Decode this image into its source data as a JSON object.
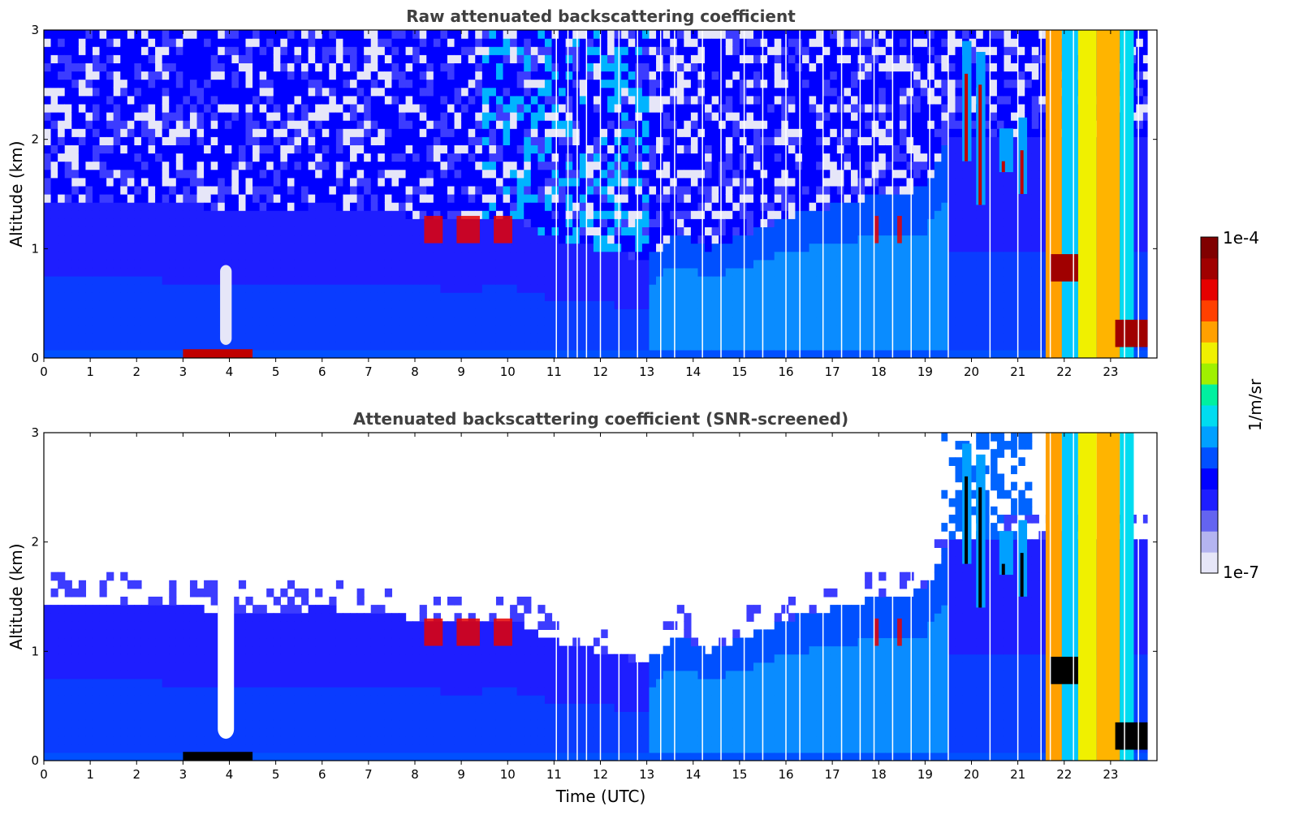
{
  "chart_data": [
    {
      "type": "heatmap",
      "title": "Raw attenuated backscattering coefficient",
      "xlabel": "",
      "ylabel": "Altitude (km)",
      "xlim": [
        0,
        24
      ],
      "ylim": [
        0,
        3
      ],
      "xticks": [
        "0",
        "1",
        "2",
        "3",
        "4",
        "5",
        "6",
        "7",
        "8",
        "9",
        "10",
        "11",
        "12",
        "13",
        "14",
        "15",
        "16",
        "17",
        "18",
        "19",
        "20",
        "21",
        "22",
        "23"
      ],
      "yticks": [
        "0",
        "1",
        "2",
        "3"
      ],
      "screened": false
    },
    {
      "type": "heatmap",
      "title": "Attenuated backscattering coefficient (SNR-screened)",
      "xlabel": "Time (UTC)",
      "ylabel": "Altitude (km)",
      "xlim": [
        0,
        24
      ],
      "ylim": [
        0,
        3
      ],
      "xticks": [
        "0",
        "1",
        "2",
        "3",
        "4",
        "5",
        "6",
        "7",
        "8",
        "9",
        "10",
        "11",
        "12",
        "13",
        "14",
        "15",
        "16",
        "17",
        "18",
        "19",
        "20",
        "21",
        "22",
        "23"
      ],
      "yticks": [
        "0",
        "1",
        "2",
        "3"
      ],
      "screened": true
    }
  ],
  "colorbar": {
    "max_label": "1e-4",
    "min_label": "1e-7",
    "unit_label": "1/m/sr",
    "colors": [
      "#e6e6f8",
      "#b4b4f0",
      "#6464f0",
      "#1e1eff",
      "#0000ff",
      "#0050ff",
      "#00a0ff",
      "#00dcf0",
      "#00f0a0",
      "#a0f000",
      "#f0f000",
      "#ffa000",
      "#ff4000",
      "#e60000",
      "#a00000",
      "#800000"
    ]
  }
}
